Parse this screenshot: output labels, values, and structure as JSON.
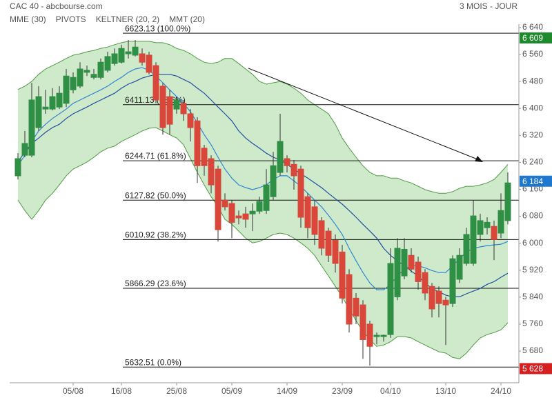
{
  "chart_data": {
    "type": "candlestick",
    "title": "CAC 40 - abcbourse.com",
    "period": "3 MOIS - JOUR",
    "pivots_label": "PIVOTS",
    "pivots_color": "#666666",
    "categories": [
      null,
      null,
      null,
      null,
      null,
      null,
      null,
      null,
      "05/08",
      null,
      null,
      null,
      null,
      null,
      null,
      "16/08",
      null,
      null,
      null,
      null,
      null,
      null,
      null,
      "25/08",
      null,
      null,
      null,
      null,
      null,
      null,
      null,
      "05/09",
      null,
      null,
      null,
      null,
      null,
      null,
      null,
      "14/09",
      null,
      null,
      null,
      null,
      null,
      null,
      null,
      "23/09",
      null,
      null,
      null,
      null,
      null,
      null,
      "04/10",
      null,
      null,
      null,
      null,
      null,
      null,
      null,
      "13/10",
      null,
      null,
      null,
      null,
      null,
      null,
      null,
      "24/10",
      null
    ],
    "open": [
      6200,
      6261,
      6261,
      6343,
      6398,
      6398,
      6404,
      6415,
      6455,
      6466,
      6507,
      6492,
      6492,
      6513,
      6533,
      6537,
      6562,
      6558,
      6562,
      6558,
      6527,
      6466,
      6435,
      6398,
      6415,
      6384,
      6363,
      6282,
      6251,
      6220,
      6128,
      6118,
      6081,
      6087,
      6087,
      6095,
      6097,
      6138,
      6210,
      6251,
      6234,
      6220,
      6138,
      6108,
      6067,
      6036,
      6009,
      5974,
      5907,
      5837,
      5817,
      5760,
      5723,
      5723,
      5729,
      5841,
      5903,
      5964,
      5944,
      5913,
      5872,
      5858,
      5831,
      5821,
      5893,
      5940,
      5940,
      6026,
      6046,
      6050,
      6030,
      6067
    ],
    "high": [
      6267,
      6333,
      6476,
      6466,
      6455,
      6460,
      6466,
      6517,
      6507,
      6537,
      6527,
      6517,
      6548,
      6568,
      6578,
      6589,
      6603,
      6603,
      6578,
      6568,
      6537,
      6476,
      6455,
      6435,
      6425,
      6398,
      6374,
      6292,
      6261,
      6230,
      6148,
      6128,
      6097,
      6108,
      6118,
      6138,
      6220,
      6271,
      6384,
      6261,
      6247,
      6230,
      6148,
      6128,
      6077,
      6046,
      6026,
      5995,
      5923,
      5852,
      5831,
      5770,
      5735,
      5729,
      5985,
      6015,
      6015,
      5985,
      5960,
      5923,
      5882,
      5872,
      5841,
      5964,
      5985,
      6046,
      6128,
      6087,
      6077,
      6067,
      6148,
      6210
    ],
    "low": [
      6189,
      6255,
      6255,
      6333,
      6384,
      6394,
      6398,
      6404,
      6445,
      6460,
      6496,
      6486,
      6486,
      6507,
      6527,
      6533,
      6548,
      6554,
      6527,
      6501,
      6415,
      6322,
      6322,
      6384,
      6363,
      6302,
      6179,
      6200,
      6148,
      6005,
      6097,
      6015,
      6056,
      6046,
      6036,
      6087,
      6087,
      6128,
      6200,
      6210,
      6159,
      6046,
      6015,
      5995,
      5964,
      5944,
      5913,
      5821,
      5735,
      5760,
      5657,
      5637,
      5700,
      5708,
      5719,
      5831,
      5893,
      5913,
      5862,
      5831,
      5780,
      5780,
      5698,
      5811,
      5882,
      5933,
      5933,
      6005,
      6026,
      5950,
      6015,
      6056
    ],
    "close": [
      6251,
      6296,
      6425,
      6435,
      6404,
      6435,
      6445,
      6496,
      6492,
      6517,
      6513,
      6501,
      6537,
      6554,
      6562,
      6578,
      6568,
      6582,
      6537,
      6507,
      6425,
      6343,
      6353,
      6425,
      6384,
      6343,
      6230,
      6230,
      6173,
      6040,
      6108,
      6062,
      6075,
      6071,
      6095,
      6124,
      6173,
      6230,
      6302,
      6230,
      6200,
      6077,
      6046,
      6026,
      5985,
      5964,
      5940,
      5837,
      5760,
      5784,
      5714,
      5694,
      5727,
      5727,
      5940,
      5985,
      5982,
      5923,
      5886,
      5852,
      5805,
      5821,
      5817,
      5954,
      5964,
      6026,
      6081,
      6067,
      6062,
      6011,
      6097,
      6179
    ],
    "up_color": "#2f8f45",
    "down_color": "#d9473b",
    "series": [
      {
        "name": "MME (30)",
        "color": "#2f86d0",
        "values": [
          6230,
          6261,
          6302,
          6333,
          6353,
          6370,
          6384,
          6398,
          6415,
          6425,
          6435,
          6445,
          6455,
          6466,
          6480,
          6492,
          6507,
          6517,
          6521,
          6513,
          6496,
          6476,
          6455,
          6435,
          6415,
          6390,
          6357,
          6322,
          6292,
          6255,
          6220,
          6193,
          6173,
          6165,
          6159,
          6165,
          6173,
          6189,
          6200,
          6200,
          6185,
          6169,
          6148,
          6128,
          6108,
          6083,
          6056,
          6026,
          5985,
          5948,
          5913,
          5882,
          5862,
          5862,
          5878,
          5903,
          5923,
          5933,
          5933,
          5927,
          5919,
          5913,
          5913,
          5933,
          5954,
          5974,
          5985,
          5989,
          5993,
          5995,
          5997,
          6005
        ]
      },
      {
        "name": "KELTNER (20, 2)",
        "color": "#4f9a43",
        "fill": "rgba(128,196,118,0.38)",
        "upper": [
          6456,
          6466,
          6480,
          6501,
          6517,
          6527,
          6537,
          6548,
          6558,
          6562,
          6568,
          6572,
          6578,
          6582,
          6589,
          6595,
          6599,
          6599,
          6599,
          6599,
          6595,
          6595,
          6589,
          6578,
          6572,
          6562,
          6548,
          6537,
          6533,
          6537,
          6548,
          6548,
          6533,
          6517,
          6501,
          6480,
          6472,
          6476,
          6480,
          6472,
          6460,
          6445,
          6425,
          6411,
          6398,
          6384,
          6353,
          6312,
          6282,
          6255,
          6230,
          6210,
          6200,
          6200,
          6193,
          6193,
          6185,
          6179,
          6169,
          6159,
          6153,
          6148,
          6148,
          6153,
          6163,
          6169,
          6169,
          6173,
          6179,
          6189,
          6210,
          6234
        ],
        "lower": [
          6128,
          6097,
          6071,
          6097,
          6128,
          6148,
          6173,
          6200,
          6220,
          6230,
          6241,
          6255,
          6271,
          6282,
          6288,
          6302,
          6312,
          6322,
          6333,
          6341,
          6343,
          6333,
          6322,
          6312,
          6292,
          6251,
          6210,
          6173,
          6138,
          6108,
          6071,
          6056,
          6036,
          6015,
          6001,
          6005,
          6015,
          6026,
          6030,
          6026,
          6015,
          6001,
          5985,
          5964,
          5933,
          5903,
          5872,
          5841,
          5805,
          5770,
          5739,
          5714,
          5694,
          5698,
          5708,
          5723,
          5723,
          5719,
          5708,
          5698,
          5688,
          5678,
          5674,
          5661,
          5657,
          5674,
          5698,
          5719,
          5729,
          5735,
          5743,
          5764
        ]
      },
      {
        "name": "MMT (20)",
        "color": "#1f4f9e",
        "values": [
          6241,
          6271,
          6296,
          6312,
          6329,
          6343,
          6353,
          6370,
          6384,
          6394,
          6404,
          6415,
          6425,
          6435,
          6445,
          6460,
          6472,
          6480,
          6490,
          6496,
          6501,
          6501,
          6501,
          6496,
          6486,
          6476,
          6460,
          6445,
          6425,
          6404,
          6384,
          6363,
          6333,
          6312,
          6296,
          6282,
          6267,
          6255,
          6247,
          6234,
          6220,
          6206,
          6193,
          6179,
          6165,
          6148,
          6132,
          6116,
          6097,
          6077,
          6056,
          6036,
          6015,
          5985,
          5964,
          5948,
          5933,
          5917,
          5903,
          5882,
          5866,
          5856,
          5846,
          5841,
          5841,
          5850,
          5858,
          5866,
          5878,
          5886,
          5899,
          5911
        ]
      }
    ],
    "fib_levels": [
      {
        "value": 6623.13,
        "label": "6623.13  (100.0%)"
      },
      {
        "value": 6411.13,
        "label": "6411.13  (78.6%)"
      },
      {
        "value": 6244.71,
        "label": "6244.71  (61.8%)"
      },
      {
        "value": 6127.82,
        "label": "6127.82  (50.0%)"
      },
      {
        "value": 6010.92,
        "label": "6010.92  (38.2%)"
      },
      {
        "value": 5866.29,
        "label": "5866.29  (23.6%)"
      },
      {
        "value": 5632.51,
        "label": "5632.51  (0.0%)"
      }
    ],
    "price_tags": [
      {
        "value": 6609,
        "label": "6 609",
        "color": "#1f8a2c"
      },
      {
        "value": 6184,
        "label": "6 184",
        "color": "#1f78d0"
      },
      {
        "value": 5628,
        "label": "5 628",
        "color": "#d42020"
      }
    ],
    "ylim": [
      5586,
      6650
    ],
    "yticks": [
      {
        "value": 5680,
        "label": "5 680"
      },
      {
        "value": 5760,
        "label": "5 760"
      },
      {
        "value": 5840,
        "label": "5 840"
      },
      {
        "value": 5920,
        "label": "5 920"
      },
      {
        "value": 6000,
        "label": "6 000"
      },
      {
        "value": 6080,
        "label": "6 080"
      },
      {
        "value": 6160,
        "label": "6 160"
      },
      {
        "value": 6240,
        "label": "6 240"
      },
      {
        "value": 6320,
        "label": "6 320"
      },
      {
        "value": 6400,
        "label": "6 400"
      },
      {
        "value": 6480,
        "label": "6 480"
      },
      {
        "value": 6560,
        "label": "6 560"
      },
      {
        "value": 6640,
        "label": "6 640"
      }
    ]
  }
}
